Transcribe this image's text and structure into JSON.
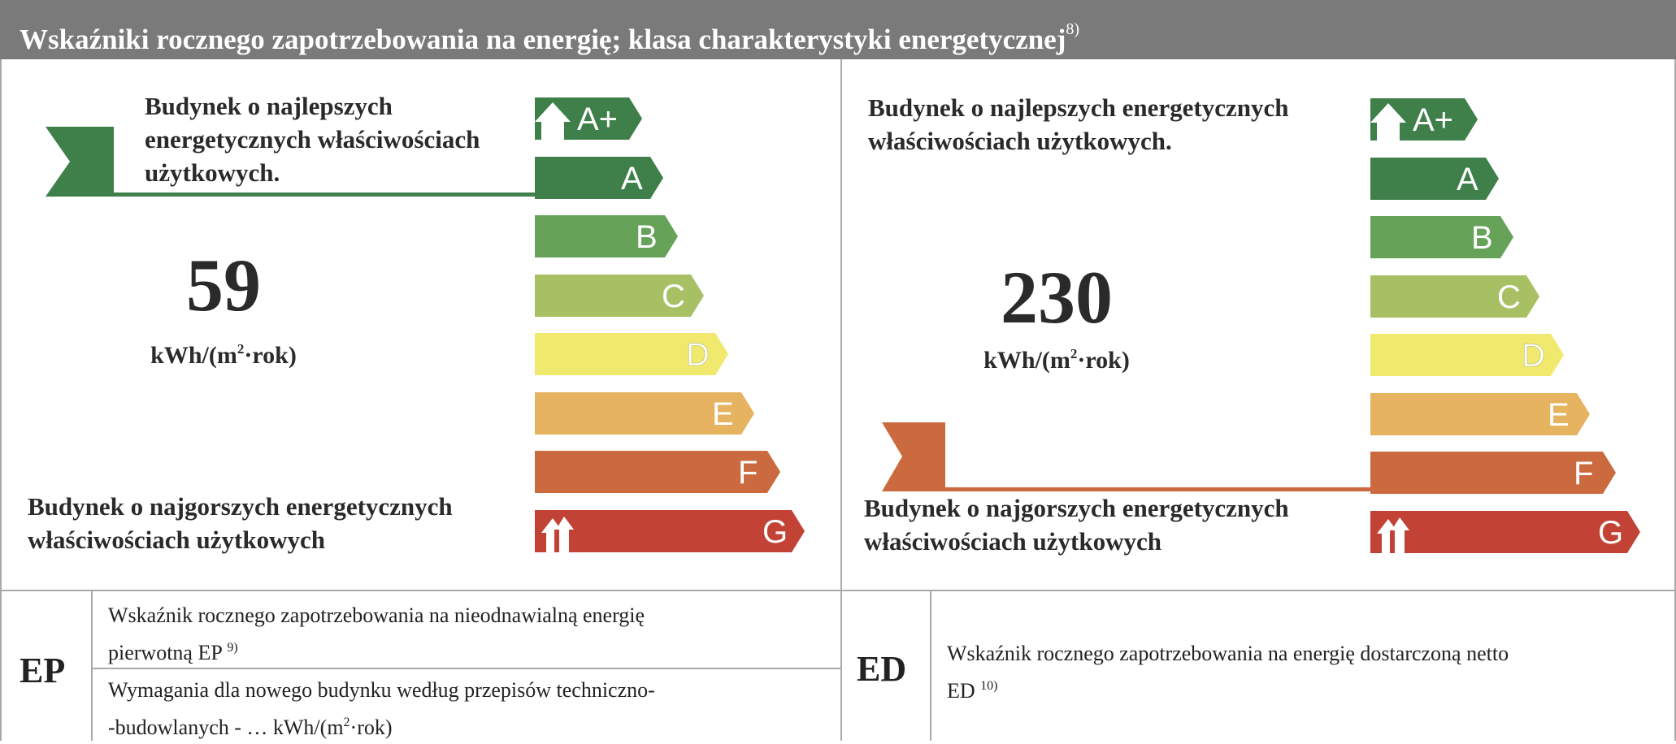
{
  "header": {
    "title": "Wskaźniki rocznego zapotrzebowania na energię; klasa charakterystyki energetycznej",
    "title_ref": "8)"
  },
  "scale": {
    "classes": [
      {
        "label": "A+",
        "color": "#3f7f4a"
      },
      {
        "label": "A",
        "color": "#3f7f4a"
      },
      {
        "label": "B",
        "color": "#66a359"
      },
      {
        "label": "C",
        "color": "#a8c064"
      },
      {
        "label": "D",
        "color": "#f1e96d"
      },
      {
        "label": "E",
        "color": "#e6b460"
      },
      {
        "label": "F",
        "color": "#cb6a3f"
      },
      {
        "label": "G",
        "color": "#c24236"
      }
    ]
  },
  "left": {
    "best_line1": "Budynek o najlepszych",
    "best_line2": "energetycznych właściwościach",
    "best_line3": "użytkowych.",
    "worst_line1": "Budynek o najgorszych energetycznych",
    "worst_line2": "właściwościach użytkowych",
    "value": "59",
    "unit_pre": "kWh/(m",
    "unit_sup": "2",
    "unit_post": "·rok)",
    "indicator_class": "A",
    "indicator_color": "#3f7f4a"
  },
  "right": {
    "best_line1": "Budynek o najlepszych energetycznych",
    "best_line2": "właściwościach użytkowych.",
    "worst_line1": "Budynek o najgorszych energetycznych",
    "worst_line2": "właściwościach użytkowych",
    "value": "230",
    "unit_pre": "kWh/(m",
    "unit_sup": "2",
    "unit_post": "·rok)",
    "indicator_class": "F",
    "indicator_color": "#cb6a3f"
  },
  "bottom": {
    "ep_label": "EP",
    "ep_text_line1": "Wskaźnik rocznego zapotrzebowania na nieodnawialną energię",
    "ep_text_line2": "pierwotną EP",
    "ep_ref": "9)",
    "req_line1": "Wymagania dla nowego budynku według przepisów techniczno-",
    "req_line2_pre": "-budowlanych - … kWh/(m",
    "req_line2_sup": "2",
    "req_line2_post": "·rok)",
    "ed_label": "ED",
    "ed_text_line1": "Wskaźnik rocznego zapotrzebowania na energię dostarczoną netto",
    "ed_text_line2": "ED",
    "ed_ref": "10)"
  }
}
